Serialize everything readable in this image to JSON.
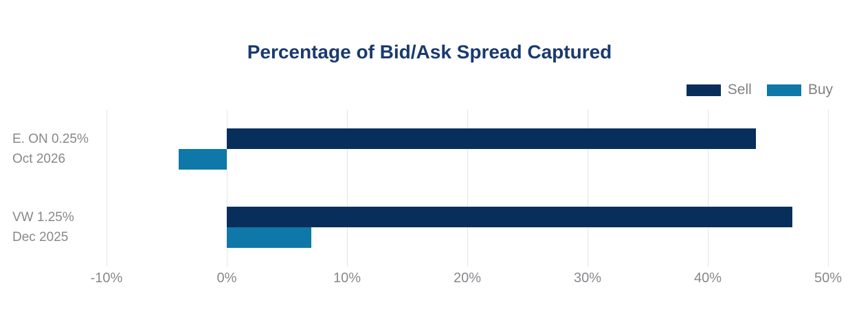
{
  "title": "Percentage of Bid/Ask Spread Captured",
  "colors": {
    "title": "#1a3a6e",
    "sell": "#082f5c",
    "buy": "#0e78a8",
    "grid": "#e3e4e5",
    "axis_text": "#86888b"
  },
  "legend": {
    "items": [
      {
        "label": "Sell",
        "color": "#082f5c"
      },
      {
        "label": "Buy",
        "color": "#0e78a8"
      }
    ]
  },
  "chart_data": {
    "type": "bar",
    "orientation": "horizontal",
    "title": "Percentage of Bid/Ask Spread Captured",
    "categories": [
      [
        "E. ON 0.25%",
        "Oct 2026"
      ],
      [
        "VW 1.25%",
        "Dec 2025"
      ]
    ],
    "series": [
      {
        "name": "Sell",
        "color": "#082f5c",
        "values": [
          44,
          47
        ]
      },
      {
        "name": "Buy",
        "color": "#0e78a8",
        "values": [
          -4,
          7
        ]
      }
    ],
    "xlabel": "",
    "ylabel": "",
    "xlim": [
      -10,
      50
    ],
    "xticks": [
      -10,
      0,
      10,
      20,
      30,
      40,
      50
    ],
    "xtick_labels": [
      "-10%",
      "0%",
      "10%",
      "20%",
      "30%",
      "40%",
      "50%"
    ],
    "grid": "vertical",
    "legend_position": "top-right"
  }
}
